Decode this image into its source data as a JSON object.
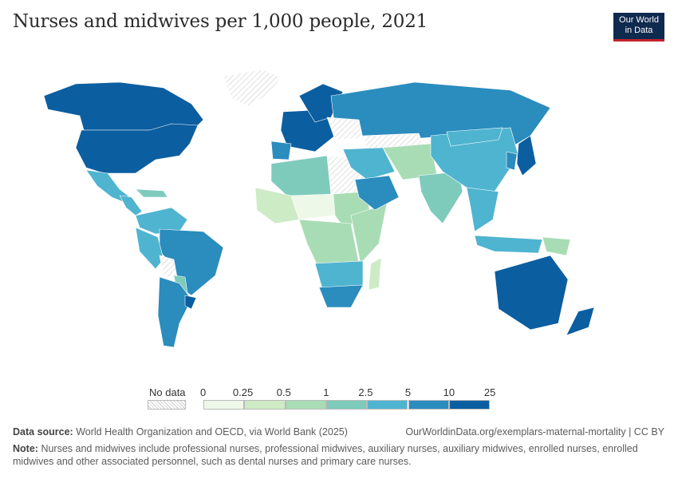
{
  "title": "Nurses and midwives per 1,000 people, 2021",
  "logo": {
    "line1": "Our World",
    "line2": "in Data"
  },
  "legend": {
    "no_data_label": "No data",
    "ticks": [
      "0",
      "0.25",
      "0.5",
      "1",
      "2.5",
      "5",
      "10",
      "25"
    ],
    "colors": [
      "#eef8e8",
      "#cdebc5",
      "#a8dcb5",
      "#7ecbbc",
      "#4fb4d0",
      "#2b8cbe",
      "#0b5ea0"
    ]
  },
  "footer": {
    "source_label": "Data source:",
    "source_text": "World Health Organization and OECD, via World Bank (2025)",
    "url": "OurWorldinData.org/exemplars-maternal-mortality | CC BY",
    "note_label": "Note:",
    "note_text": "Nurses and midwives include professional nurses, professional midwives, auxiliary nurses, auxiliary midwives, enrolled nurses, enrolled midwives and other associated personnel, such as dental nurses and primary care nurses."
  },
  "map_data": {
    "regions": [
      {
        "name": "Canada",
        "bin": 6
      },
      {
        "name": "United States",
        "bin": 6
      },
      {
        "name": "Greenland",
        "bin": -1
      },
      {
        "name": "Mexico",
        "bin": 4
      },
      {
        "name": "Central America",
        "bin": 4
      },
      {
        "name": "Caribbean",
        "bin": 3
      },
      {
        "name": "Colombia-Venezuela",
        "bin": 4
      },
      {
        "name": "Brazil",
        "bin": 5
      },
      {
        "name": "Peru",
        "bin": 4
      },
      {
        "name": "Bolivia",
        "bin": -1
      },
      {
        "name": "Paraguay",
        "bin": 3
      },
      {
        "name": "Argentina-Chile",
        "bin": 5
      },
      {
        "name": "Uruguay",
        "bin": 6
      },
      {
        "name": "Western Europe",
        "bin": 6
      },
      {
        "name": "Iberia",
        "bin": 5
      },
      {
        "name": "Scandinavia",
        "bin": 6
      },
      {
        "name": "Russia",
        "bin": 5
      },
      {
        "name": "Ukraine-Belarus",
        "bin": -1
      },
      {
        "name": "Kazakhstan",
        "bin": -1
      },
      {
        "name": "North Africa",
        "bin": 3
      },
      {
        "name": "Libya-Egypt",
        "bin": -1
      },
      {
        "name": "West Africa",
        "bin": 1
      },
      {
        "name": "Sahel",
        "bin": 0
      },
      {
        "name": "Sudan",
        "bin": 2
      },
      {
        "name": "Central Africa",
        "bin": 2
      },
      {
        "name": "East Africa",
        "bin": 2
      },
      {
        "name": "Southern Africa",
        "bin": 4
      },
      {
        "name": "South Africa",
        "bin": 5
      },
      {
        "name": "Madagascar",
        "bin": 1
      },
      {
        "name": "Middle East",
        "bin": 4
      },
      {
        "name": "Saudi Arabia",
        "bin": 5
      },
      {
        "name": "Iran-Central Asia",
        "bin": 2
      },
      {
        "name": "India",
        "bin": 3
      },
      {
        "name": "China",
        "bin": 4
      },
      {
        "name": "Mongolia",
        "bin": 4
      },
      {
        "name": "Southeast Asia",
        "bin": 4
      },
      {
        "name": "Indonesia",
        "bin": 4
      },
      {
        "name": "Papua New Guinea",
        "bin": 2
      },
      {
        "name": "Japan",
        "bin": 6
      },
      {
        "name": "Korea",
        "bin": 5
      },
      {
        "name": "Australia",
        "bin": 6
      },
      {
        "name": "New Zealand",
        "bin": 6
      }
    ]
  }
}
